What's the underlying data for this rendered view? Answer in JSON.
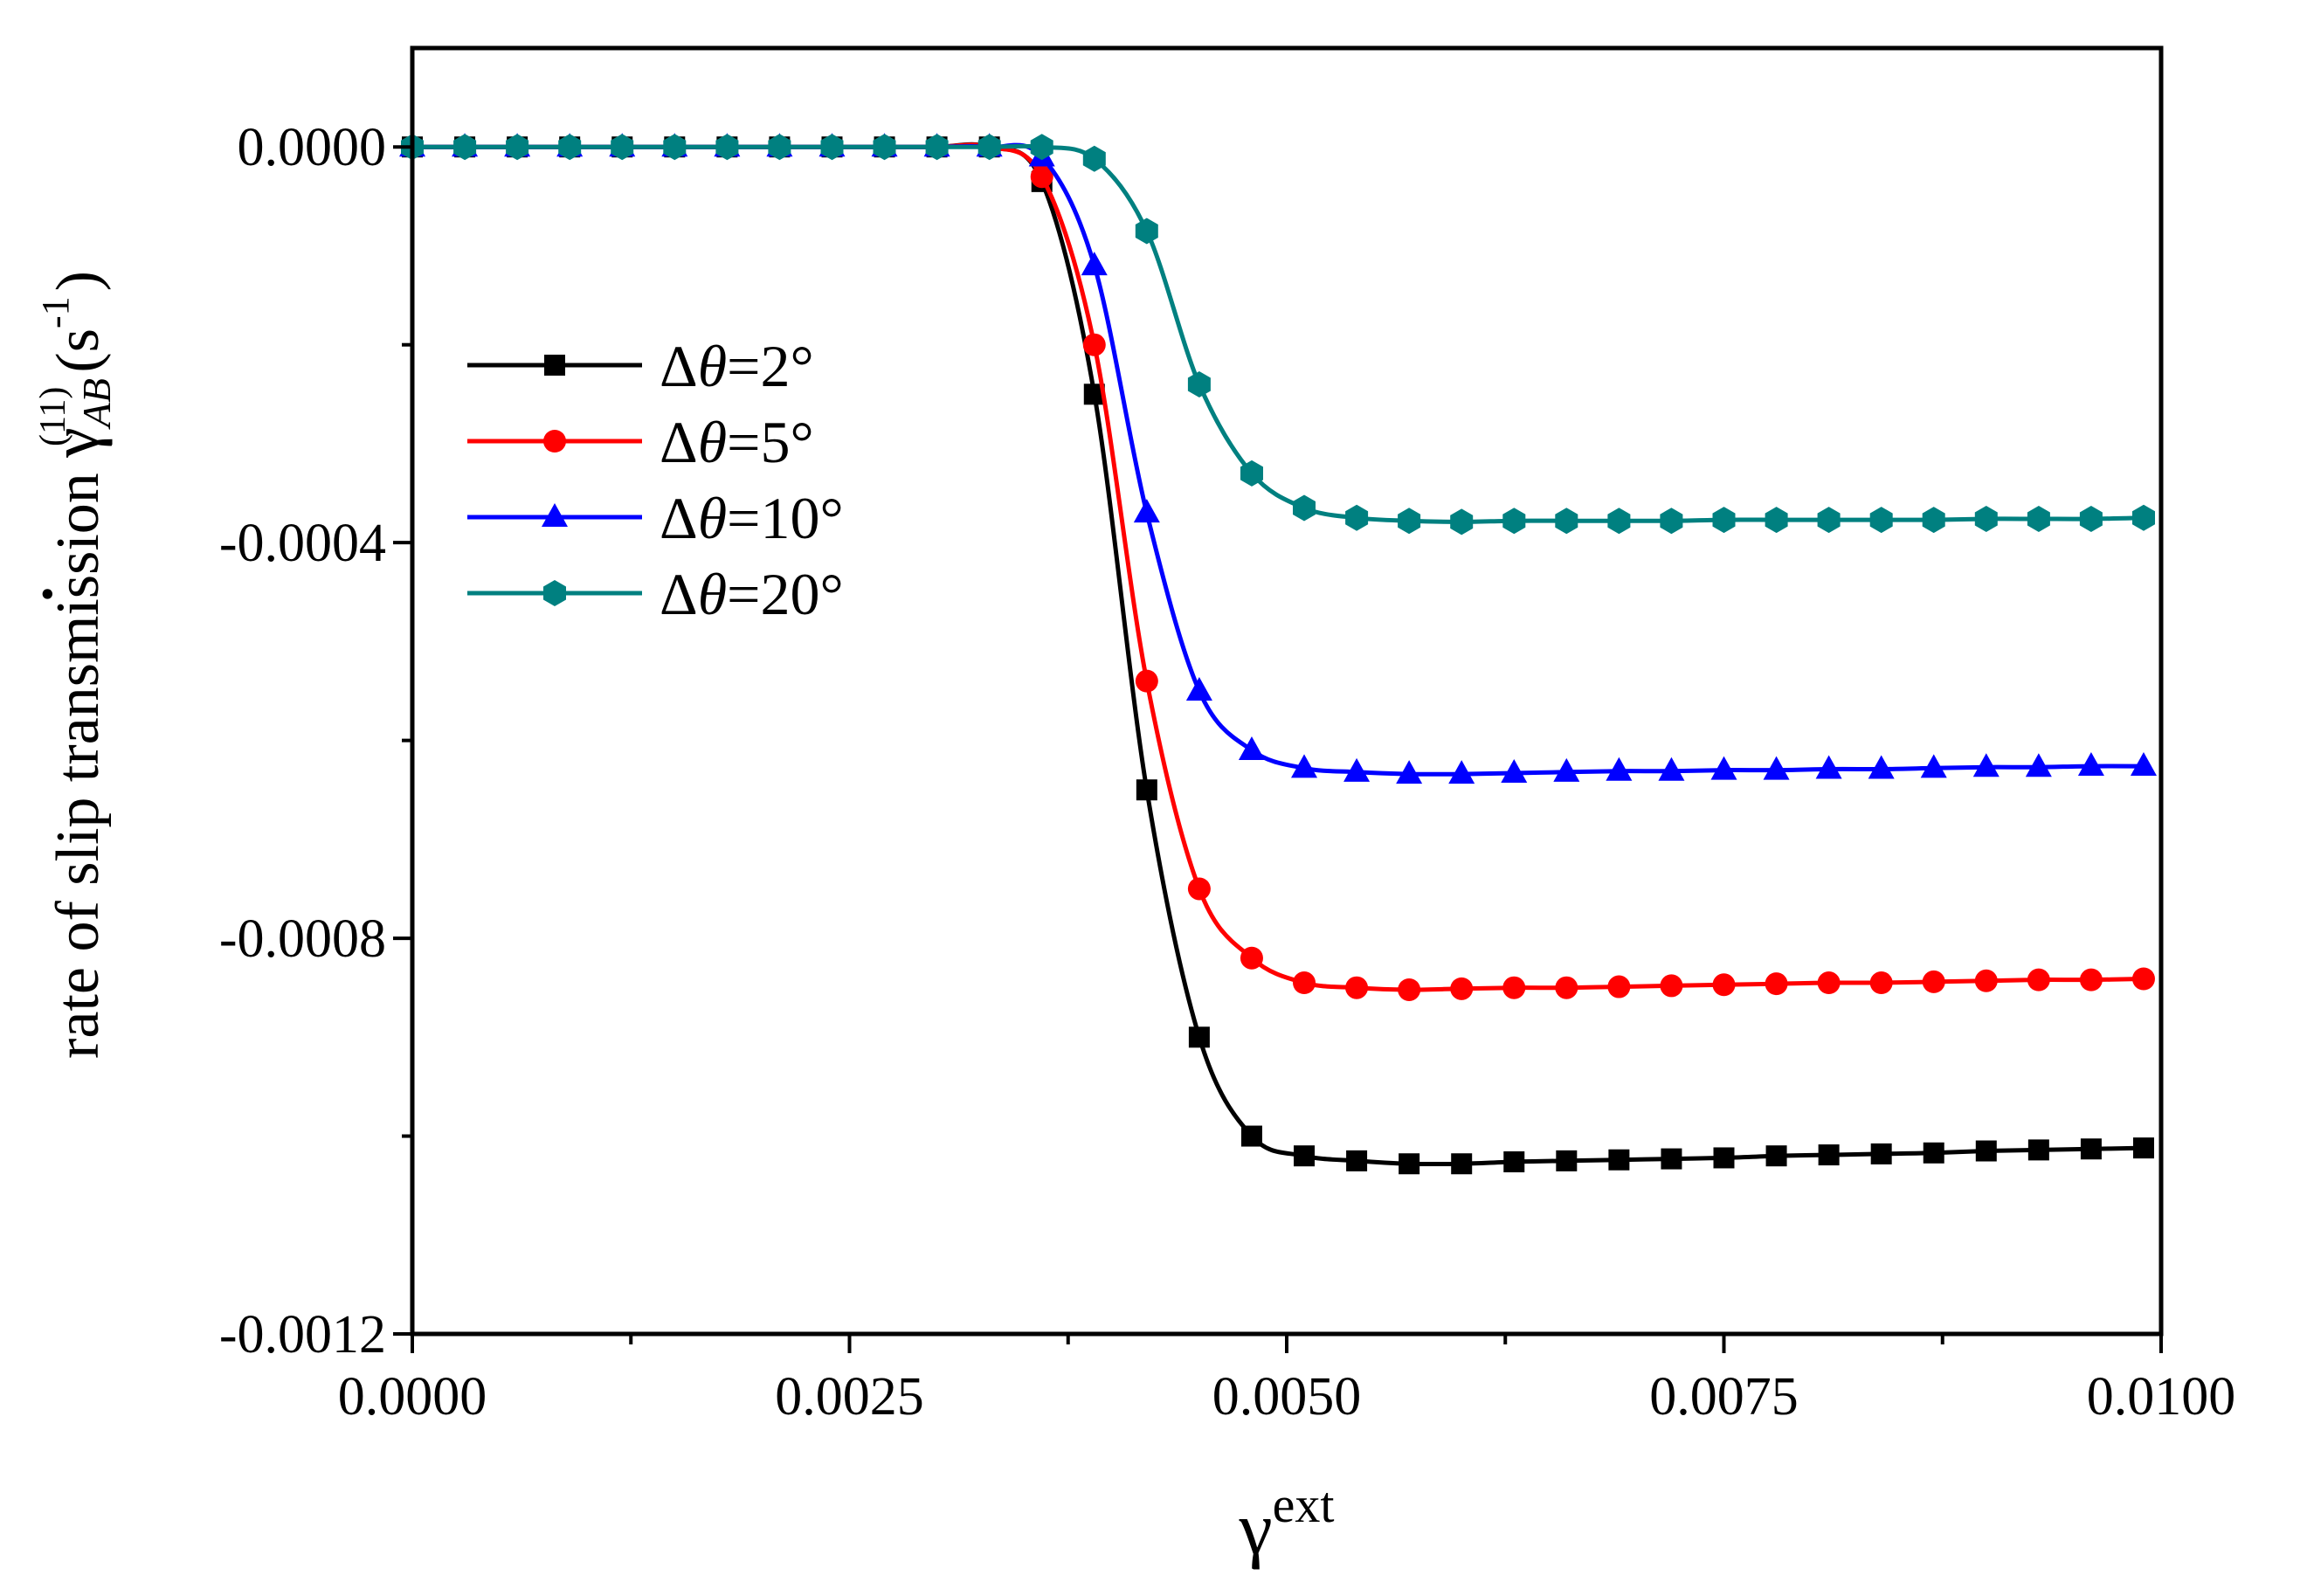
{
  "chart_data": {
    "type": "line",
    "title": "",
    "xlabel": {
      "symbol": "γ",
      "superscript": "ext"
    },
    "ylabel": {
      "prefix": "rate of slip transmission ",
      "symbol": "γ",
      "dot": "•",
      "superscript": "(11)",
      "subscript": "AB",
      "units": "(s",
      "units_sup": "-1",
      "units_close": ")"
    },
    "xlim": [
      0.0,
      0.01
    ],
    "ylim": [
      -0.0012,
      0.0001
    ],
    "x_ticks": [
      0.0,
      0.0025,
      0.005,
      0.0075,
      0.01
    ],
    "x_tick_labels": [
      "0.0000",
      "0.0025",
      "0.0050",
      "0.0075",
      "0.0100"
    ],
    "y_ticks": [
      0.0,
      -0.0004,
      -0.0008,
      -0.0012
    ],
    "y_tick_labels": [
      "0.0000",
      "-0.0004",
      "-0.0008",
      "-0.0012"
    ],
    "x_minor_ticks": [
      0.00125,
      0.00375,
      0.00625,
      0.00875
    ],
    "y_minor_ticks": [
      -0.0002,
      -0.0006,
      -0.001
    ],
    "legend_position": "upper-left",
    "x": [
      0.0,
      0.0003,
      0.0006,
      0.0009,
      0.0012,
      0.0015,
      0.0018,
      0.0021,
      0.0024,
      0.0027,
      0.003,
      0.0033,
      0.0036,
      0.0039,
      0.0042,
      0.0045,
      0.0048,
      0.0051,
      0.0054,
      0.0057,
      0.006,
      0.0063,
      0.0066,
      0.0069,
      0.0072,
      0.0075,
      0.0078,
      0.0081,
      0.0084,
      0.0087,
      0.009,
      0.0093,
      0.0096,
      0.0099
    ],
    "series": [
      {
        "name": "Δθ=2°",
        "label_prefix": "Δ",
        "label_symbol": "θ",
        "label_suffix": "=2°",
        "color": "#000000",
        "marker": "square",
        "values": [
          0,
          0,
          0,
          0,
          0,
          0,
          0,
          0,
          0,
          0,
          0,
          0,
          -3.5e-05,
          -0.00025,
          -0.00065,
          -0.0009,
          -0.001,
          -0.00102,
          -0.001025,
          -0.001028,
          -0.001028,
          -0.001026,
          -0.001025,
          -0.001024,
          -0.001023,
          -0.001022,
          -0.00102,
          -0.001019,
          -0.001018,
          -0.001017,
          -0.001015,
          -0.001014,
          -0.001013,
          -0.001012
        ]
      },
      {
        "name": "Δθ=5°",
        "label_prefix": "Δ",
        "label_symbol": "θ",
        "label_suffix": "=5°",
        "color": "#ff0000",
        "marker": "circle",
        "values": [
          0,
          0,
          0,
          0,
          0,
          0,
          0,
          0,
          0,
          0,
          0,
          0,
          -3e-05,
          -0.0002,
          -0.00054,
          -0.00075,
          -0.00082,
          -0.000845,
          -0.00085,
          -0.000852,
          -0.000851,
          -0.00085,
          -0.00085,
          -0.000849,
          -0.000848,
          -0.000847,
          -0.000846,
          -0.000845,
          -0.000845,
          -0.000844,
          -0.000843,
          -0.000842,
          -0.000842,
          -0.000841
        ]
      },
      {
        "name": "Δθ=10°",
        "label_prefix": "Δ",
        "label_symbol": "θ",
        "label_suffix": "=10°",
        "color": "#0000ff",
        "marker": "triangle",
        "values": [
          0,
          0,
          0,
          0,
          0,
          0,
          0,
          0,
          0,
          0,
          0,
          0,
          -1e-05,
          -0.00012,
          -0.00037,
          -0.00055,
          -0.00061,
          -0.000628,
          -0.000632,
          -0.000634,
          -0.000634,
          -0.000633,
          -0.000632,
          -0.000631,
          -0.000631,
          -0.00063,
          -0.00063,
          -0.000629,
          -0.000629,
          -0.000628,
          -0.000627,
          -0.000627,
          -0.000626,
          -0.000626
        ]
      },
      {
        "name": "Δθ=20°",
        "label_prefix": "Δ",
        "label_symbol": "θ",
        "label_suffix": "=20°",
        "color": "#008080",
        "marker": "hexagon",
        "values": [
          0,
          0,
          0,
          0,
          0,
          0,
          0,
          0,
          0,
          0,
          0,
          0,
          0,
          -1.2e-05,
          -8.5e-05,
          -0.00024,
          -0.00033,
          -0.000365,
          -0.000375,
          -0.000378,
          -0.000379,
          -0.000378,
          -0.000378,
          -0.000378,
          -0.000378,
          -0.000377,
          -0.000377,
          -0.000377,
          -0.000377,
          -0.000377,
          -0.000376,
          -0.000376,
          -0.000376,
          -0.000375
        ]
      }
    ]
  }
}
